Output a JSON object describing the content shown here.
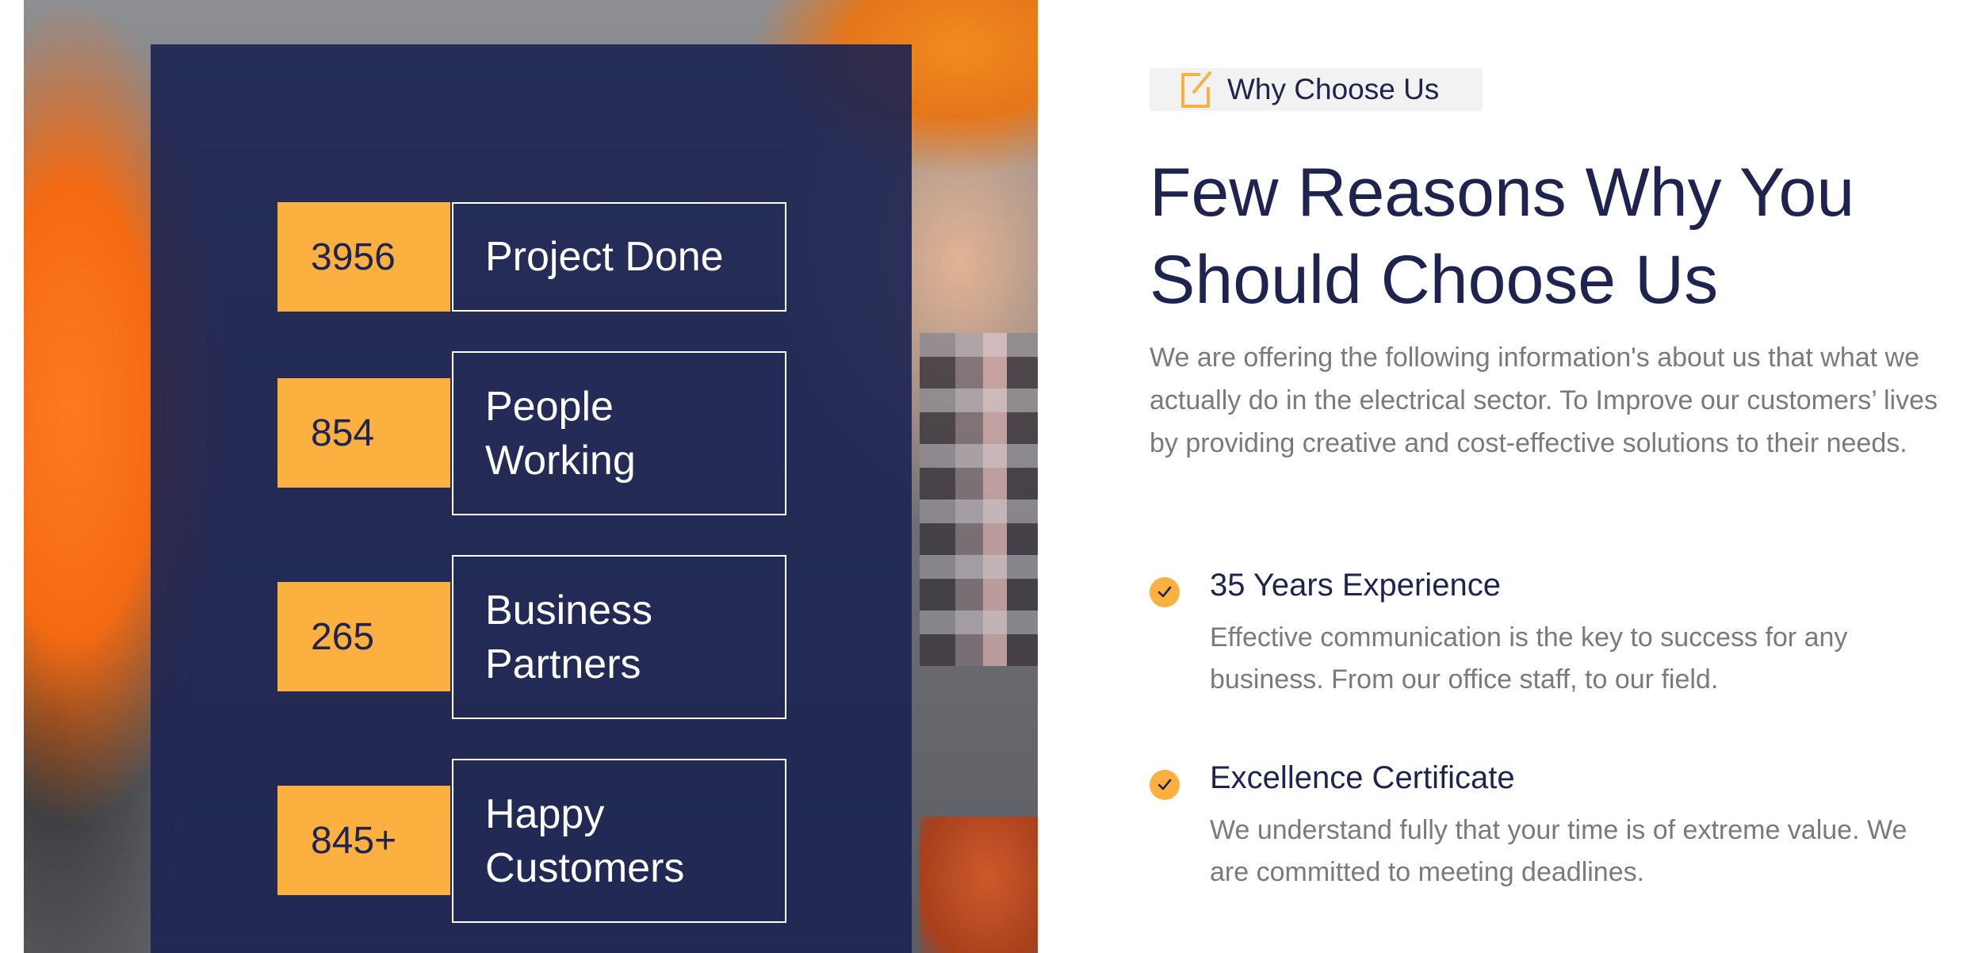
{
  "stats": [
    {
      "number": "3956",
      "label_lines": [
        "Project Done"
      ]
    },
    {
      "number": "854",
      "label_lines": [
        "People",
        "Working"
      ]
    },
    {
      "number": "265",
      "label_lines": [
        "Business",
        "Partners"
      ]
    },
    {
      "number": "845+",
      "label_lines": [
        "Happy",
        "Customers"
      ]
    }
  ],
  "badge": {
    "text": "Why Choose Us",
    "icon": "edit-icon"
  },
  "heading": {
    "line1": "Few Reasons Why You",
    "line2": "Should Choose Us"
  },
  "intro": "We are offering the following information's about us that what we actually do in the electrical sector. To Improve our customers’ lives by providing creative and cost-effective solutions to their needs.",
  "features": [
    {
      "icon": "check-icon",
      "title": "35 Years Experience",
      "description": "Effective communication is the key to success for any business. From our office staff, to our field."
    },
    {
      "icon": "check-icon",
      "title": "Excellence Certificate",
      "description": "We understand fully that your time is of extreme value. We are committed to meeting deadlines."
    }
  ],
  "colors": {
    "navy": "#1f2350",
    "accent": "#fbb040",
    "overlay": "#1b2352",
    "muted_text": "#7a7a7a",
    "badge_bg": "#f2f2f2"
  }
}
